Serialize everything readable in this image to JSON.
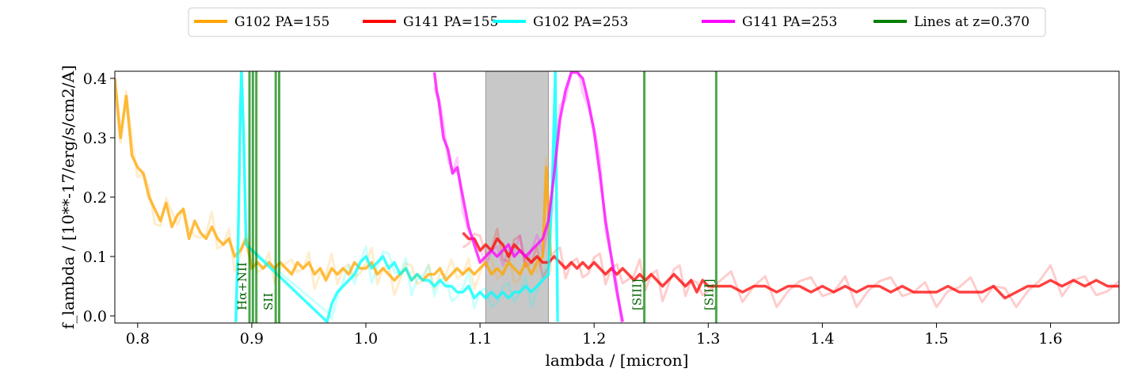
{
  "chart_data": {
    "type": "line",
    "title": "",
    "xlabel": "lambda / [micron]",
    "ylabel": "f_lambda / [10**-17/erg/s/cm2/A]",
    "xlim": [
      0.78,
      1.66
    ],
    "ylim": [
      -0.012,
      0.412
    ],
    "x_ticks": [
      "0.8",
      "0.9",
      "1.0",
      "1.1",
      "1.2",
      "1.3",
      "1.4",
      "1.5",
      "1.6"
    ],
    "y_ticks": [
      "0.0",
      "0.1",
      "0.2",
      "0.3",
      "0.4"
    ],
    "grid": false,
    "legend_position": "top-center",
    "shaded_region": {
      "x_start": 1.105,
      "x_end": 1.16,
      "color": "#c8c8c8"
    },
    "series": [
      {
        "name": "G102 PA=155",
        "color": "#ffa500",
        "x": [
          0.78,
          0.785,
          0.79,
          0.795,
          0.8,
          0.805,
          0.81,
          0.815,
          0.82,
          0.825,
          0.83,
          0.835,
          0.84,
          0.845,
          0.85,
          0.855,
          0.86,
          0.865,
          0.87,
          0.875,
          0.88,
          0.885,
          0.89,
          0.895,
          0.9,
          0.905,
          0.91,
          0.915,
          0.92,
          0.925,
          0.93,
          0.935,
          0.94,
          0.945,
          0.95,
          0.955,
          0.96,
          0.965,
          0.97,
          0.975,
          0.98,
          0.985,
          0.99,
          0.995,
          1.0,
          1.005,
          1.01,
          1.015,
          1.02,
          1.025,
          1.03,
          1.035,
          1.04,
          1.045,
          1.05,
          1.055,
          1.06,
          1.065,
          1.07,
          1.075,
          1.08,
          1.085,
          1.09,
          1.095,
          1.1,
          1.105,
          1.11,
          1.115,
          1.12,
          1.125,
          1.13,
          1.135,
          1.14,
          1.145,
          1.15,
          1.155,
          1.158,
          1.162
        ],
        "y": [
          0.4,
          0.3,
          0.37,
          0.27,
          0.25,
          0.24,
          0.2,
          0.18,
          0.16,
          0.19,
          0.15,
          0.17,
          0.18,
          0.13,
          0.16,
          0.14,
          0.13,
          0.15,
          0.13,
          0.12,
          0.13,
          0.1,
          0.11,
          0.13,
          0.08,
          0.09,
          0.08,
          0.09,
          0.08,
          0.09,
          0.08,
          0.07,
          0.09,
          0.08,
          0.09,
          0.07,
          0.08,
          0.06,
          0.08,
          0.07,
          0.08,
          0.07,
          0.09,
          0.08,
          0.08,
          0.09,
          0.07,
          0.08,
          0.07,
          0.06,
          0.07,
          0.08,
          0.06,
          0.07,
          0.06,
          0.07,
          0.07,
          0.08,
          0.06,
          0.07,
          0.08,
          0.07,
          0.08,
          0.07,
          0.08,
          0.09,
          0.07,
          0.08,
          0.07,
          0.09,
          0.08,
          0.07,
          0.09,
          0.07,
          0.09,
          0.1,
          0.25,
          0.1
        ]
      },
      {
        "name": "G141 PA=155",
        "color": "#ff0000",
        "x": [
          1.085,
          1.09,
          1.095,
          1.1,
          1.105,
          1.11,
          1.115,
          1.12,
          1.125,
          1.13,
          1.135,
          1.14,
          1.145,
          1.15,
          1.155,
          1.16,
          1.165,
          1.17,
          1.175,
          1.18,
          1.185,
          1.19,
          1.195,
          1.2,
          1.205,
          1.21,
          1.215,
          1.22,
          1.225,
          1.23,
          1.235,
          1.24,
          1.245,
          1.25,
          1.255,
          1.26,
          1.265,
          1.27,
          1.275,
          1.28,
          1.285,
          1.29,
          1.295,
          1.3,
          1.31,
          1.32,
          1.33,
          1.34,
          1.35,
          1.36,
          1.37,
          1.38,
          1.39,
          1.4,
          1.41,
          1.42,
          1.43,
          1.44,
          1.45,
          1.46,
          1.47,
          1.48,
          1.49,
          1.5,
          1.51,
          1.52,
          1.53,
          1.54,
          1.55,
          1.56,
          1.57,
          1.58,
          1.59,
          1.6,
          1.61,
          1.62,
          1.63,
          1.64,
          1.65,
          1.66
        ],
        "y": [
          0.14,
          0.13,
          0.13,
          0.11,
          0.12,
          0.11,
          0.13,
          0.12,
          0.1,
          0.12,
          0.11,
          0.1,
          0.09,
          0.1,
          0.09,
          0.09,
          0.1,
          0.09,
          0.08,
          0.09,
          0.08,
          0.09,
          0.08,
          0.09,
          0.08,
          0.07,
          0.08,
          0.07,
          0.08,
          0.07,
          0.06,
          0.07,
          0.06,
          0.07,
          0.06,
          0.05,
          0.06,
          0.07,
          0.06,
          0.05,
          0.06,
          0.04,
          0.06,
          0.05,
          0.05,
          0.05,
          0.04,
          0.05,
          0.05,
          0.04,
          0.05,
          0.05,
          0.04,
          0.05,
          0.04,
          0.05,
          0.04,
          0.05,
          0.05,
          0.04,
          0.05,
          0.04,
          0.04,
          0.04,
          0.05,
          0.04,
          0.04,
          0.04,
          0.05,
          0.03,
          0.04,
          0.05,
          0.05,
          0.06,
          0.05,
          0.06,
          0.05,
          0.06,
          0.05,
          0.05
        ]
      },
      {
        "name": "G102 PA=253",
        "color": "#00ffff",
        "x": [
          0.886,
          0.888,
          0.89,
          0.891,
          0.893,
          0.895,
          0.966,
          0.97,
          0.975,
          0.98,
          0.985,
          0.99,
          0.995,
          1.0,
          1.005,
          1.01,
          1.015,
          1.02,
          1.025,
          1.03,
          1.035,
          1.04,
          1.045,
          1.05,
          1.055,
          1.06,
          1.065,
          1.07,
          1.075,
          1.08,
          1.085,
          1.09,
          1.095,
          1.1,
          1.105,
          1.11,
          1.115,
          1.12,
          1.125,
          1.13,
          1.135,
          1.14,
          1.145,
          1.15,
          1.155,
          1.16,
          1.163,
          1.166,
          1.168
        ],
        "y": [
          -0.01,
          0.12,
          0.35,
          0.41,
          0.3,
          0.12,
          -0.01,
          0.02,
          0.04,
          0.05,
          0.06,
          0.07,
          0.09,
          0.1,
          0.08,
          0.09,
          0.1,
          0.08,
          0.09,
          0.07,
          0.08,
          0.06,
          0.07,
          0.06,
          0.06,
          0.05,
          0.06,
          0.05,
          0.05,
          0.04,
          0.04,
          0.05,
          0.03,
          0.04,
          0.03,
          0.04,
          0.03,
          0.04,
          0.03,
          0.04,
          0.04,
          0.05,
          0.04,
          0.05,
          0.06,
          0.07,
          0.2,
          0.41,
          -0.01
        ]
      },
      {
        "name": "G141 PA=253",
        "color": "#ff00ff",
        "x": [
          1.06,
          1.062,
          1.064,
          1.068,
          1.072,
          1.076,
          1.08,
          1.085,
          1.09,
          1.095,
          1.1,
          1.105,
          1.11,
          1.115,
          1.12,
          1.125,
          1.13,
          1.135,
          1.14,
          1.145,
          1.15,
          1.155,
          1.16,
          1.165,
          1.17,
          1.175,
          1.18,
          1.185,
          1.19,
          1.195,
          1.2,
          1.205,
          1.21,
          1.215,
          1.22,
          1.225
        ],
        "y": [
          0.41,
          0.38,
          0.36,
          0.3,
          0.28,
          0.24,
          0.25,
          0.2,
          0.15,
          0.12,
          0.09,
          0.1,
          0.11,
          0.1,
          0.11,
          0.12,
          0.1,
          0.11,
          0.1,
          0.11,
          0.12,
          0.13,
          0.16,
          0.24,
          0.33,
          0.38,
          0.41,
          0.41,
          0.4,
          0.36,
          0.31,
          0.24,
          0.16,
          0.1,
          0.04,
          -0.01
        ]
      }
    ],
    "line_markers": {
      "name": "Lines at z=0.370",
      "color": "#008000",
      "lines": [
        {
          "x": 0.898,
          "label": "Hα+NII"
        },
        {
          "x": 0.901,
          "label": ""
        },
        {
          "x": 0.904,
          "label": ""
        },
        {
          "x": 0.921,
          "label": "SII"
        },
        {
          "x": 0.924,
          "label": ""
        },
        {
          "x": 1.244,
          "label": "[SIII]"
        },
        {
          "x": 1.307,
          "label": "[SIII]"
        }
      ]
    }
  }
}
